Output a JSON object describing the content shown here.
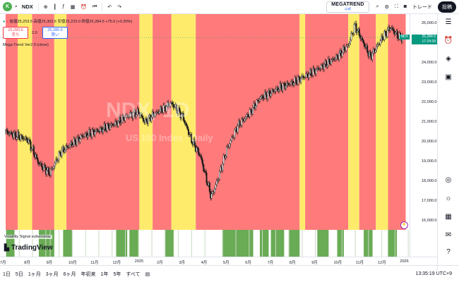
{
  "topbar": {
    "avatar_letter": "K",
    "symbol": "NDX",
    "brand_title": "MEGATREND",
    "brand_sub": "公式",
    "trade_label": "トレード",
    "post_label": "投稿"
  },
  "legend": {
    "ohlc": "始値25,253.5 高値25,302.6 安値25,223.0 終値25,284.5 +75.6 (+0.30%)",
    "sell_price": "25,283.6",
    "sell_label": "売り",
    "spread": "2.0",
    "buy_price": "25,285.6",
    "buy_label": "買い",
    "indicator": "Mega Trend Ver2.0 (close)",
    "subwindow": "Volatility Signal subwindow"
  },
  "watermark": {
    "symbol": "NDX, 1D",
    "desc": "US 100 Index · Daily"
  },
  "price_axis": {
    "ticks": [
      "26,000.0",
      "25,000.0",
      "24,000.0",
      "23,000.0",
      "22,000.0",
      "21,000.0",
      "20,000.0",
      "19,000.0",
      "18,000.0",
      "17,000.0",
      "16,000.0"
    ],
    "last_price": "25,284.5",
    "countdown": "17:24:39",
    "symbol_badge": "NDX"
  },
  "time_axis": {
    "ticks": [
      "7月",
      "8月",
      "9月",
      "10月",
      "11月",
      "12月",
      "2025",
      "2月",
      "3月",
      "4月",
      "5月",
      "6月",
      "7月",
      "8月",
      "9月",
      "10月",
      "11月",
      "12月",
      "2026"
    ]
  },
  "bottom": {
    "ranges": [
      "1日",
      "5日",
      "1ヶ月",
      "3ヶ月",
      "6ヶ月",
      "年初来",
      "1年",
      "5年",
      "すべて"
    ],
    "clock": "13:35:19 UTC+9"
  },
  "branding": "TradingView",
  "colors": {
    "bear_zone": "#ff7b7b",
    "caution_zone": "#ffeb6b",
    "signal": "#6aab55",
    "candle": "#1a1a1a",
    "up": "#089981"
  },
  "chart_data": {
    "type": "line",
    "x_unit": "month",
    "ylim": [
      15500,
      26400
    ],
    "ylabel": "",
    "xlabel": "",
    "series": [
      {
        "values": [
          [
            0,
            20500
          ],
          [
            1,
            20100
          ],
          [
            1.5,
            18900
          ],
          [
            2,
            18400
          ],
          [
            2.5,
            19500
          ],
          [
            3,
            19900
          ],
          [
            3.5,
            20300
          ],
          [
            4,
            20500
          ],
          [
            4.5,
            20700
          ],
          [
            5,
            20950
          ],
          [
            5.5,
            21300
          ],
          [
            6,
            21500
          ],
          [
            6.3,
            21000
          ],
          [
            6.6,
            21300
          ],
          [
            7,
            21600
          ],
          [
            7.5,
            21950
          ],
          [
            8,
            21300
          ],
          [
            8.4,
            20100
          ],
          [
            8.8,
            19300
          ],
          [
            9.3,
            17200
          ],
          [
            9.6,
            18100
          ],
          [
            10,
            19600
          ],
          [
            10.5,
            20800
          ],
          [
            11,
            21400
          ],
          [
            11.5,
            22200
          ],
          [
            12,
            22500
          ],
          [
            12.5,
            22800
          ],
          [
            13,
            23000
          ],
          [
            13.5,
            23300
          ],
          [
            14,
            23600
          ],
          [
            14.5,
            23950
          ],
          [
            15,
            24300
          ],
          [
            15.5,
            24900
          ],
          [
            15.8,
            25900
          ],
          [
            16.1,
            25200
          ],
          [
            16.5,
            24300
          ],
          [
            17,
            25200
          ],
          [
            17.4,
            25800
          ],
          [
            17.8,
            25300
          ],
          [
            18,
            25280
          ]
        ]
      }
    ],
    "zones_months": [
      {
        "start": 0,
        "end": 0.55,
        "kind": "bear"
      },
      {
        "start": 0.55,
        "end": 1.2,
        "kind": "caution"
      },
      {
        "start": 1.2,
        "end": 2.2,
        "kind": "bear"
      },
      {
        "start": 2.2,
        "end": 2.75,
        "kind": "caution"
      },
      {
        "start": 2.75,
        "end": 6.05,
        "kind": "bear"
      },
      {
        "start": 6.05,
        "end": 6.65,
        "kind": "caution"
      },
      {
        "start": 6.65,
        "end": 7.5,
        "kind": "bear"
      },
      {
        "start": 7.5,
        "end": 8.6,
        "kind": "caution"
      },
      {
        "start": 8.6,
        "end": 13.3,
        "kind": "bear"
      },
      {
        "start": 13.3,
        "end": 13.55,
        "kind": "caution"
      },
      {
        "start": 13.55,
        "end": 15.5,
        "kind": "bear"
      },
      {
        "start": 15.5,
        "end": 16.0,
        "kind": "caution"
      },
      {
        "start": 16.0,
        "end": 16.75,
        "kind": "bear"
      },
      {
        "start": 16.75,
        "end": 17.3,
        "kind": "caution"
      },
      {
        "start": 17.3,
        "end": 18.1,
        "kind": "bear"
      }
    ],
    "signal_months": [
      [
        0,
        0.4
      ],
      [
        1.5,
        2.2
      ],
      [
        2.6,
        3.0
      ],
      [
        5.0,
        5.5
      ],
      [
        5.6,
        6.0
      ],
      [
        7.2,
        7.6
      ],
      [
        9.8,
        11.2
      ],
      [
        11.5,
        11.9
      ],
      [
        12.0,
        12.6
      ],
      [
        12.8,
        13.3
      ],
      [
        14.1,
        14.6
      ],
      [
        15.0,
        15.3
      ],
      [
        16.2,
        16.6
      ],
      [
        17.3,
        17.7
      ]
    ]
  }
}
